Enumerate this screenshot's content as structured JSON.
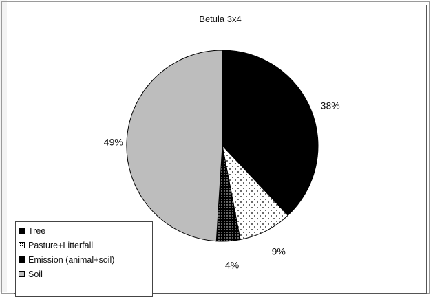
{
  "chart_data": {
    "type": "pie",
    "title": "Betula 3x4",
    "slices": [
      {
        "label": "Tree",
        "value": 38,
        "display": "38%",
        "fill": "#000000"
      },
      {
        "label": "Pasture+Litterfall",
        "value": 9,
        "display": "9%",
        "fill": "dots-white"
      },
      {
        "label": "Emission (animal+soil)",
        "value": 4,
        "display": "4%",
        "fill": "dots-black"
      },
      {
        "label": "Soil",
        "value": 49,
        "display": "49%",
        "fill": "#bdbdbd"
      }
    ],
    "legend_position": "bottom-left"
  }
}
